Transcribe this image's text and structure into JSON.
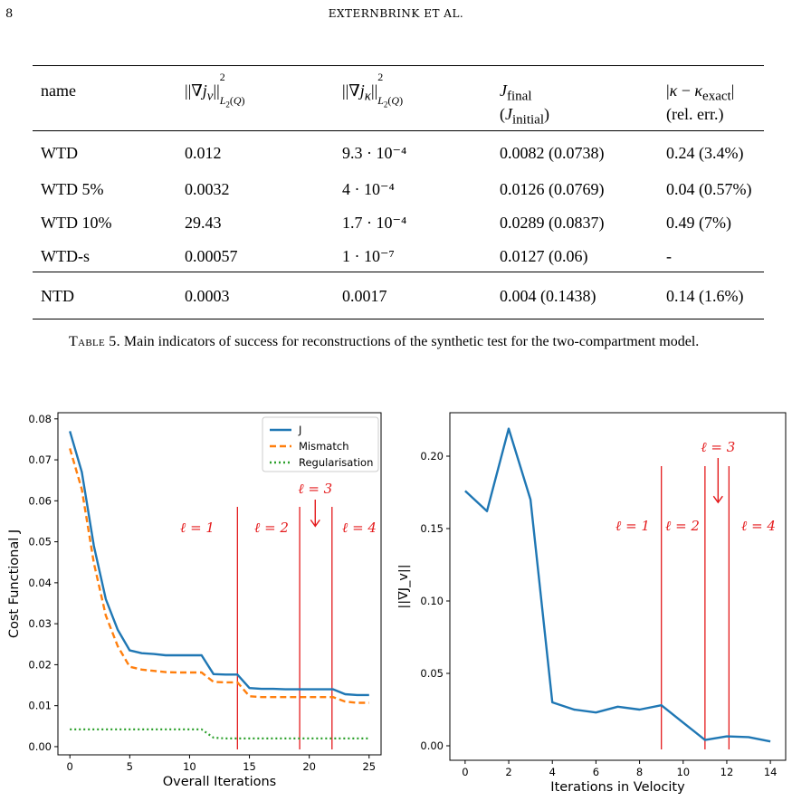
{
  "header": {
    "page_number": "8",
    "running_head": "EXTERNBRINK ET AL."
  },
  "table": {
    "columns": [
      "name",
      "||∇j_v||²_{L₂(Q)}",
      "||∇j_κ||²_{L₂(Q)}",
      "J_final (J_initial)",
      "|κ − κ_exact| (rel. err.)"
    ],
    "rows": [
      {
        "name": "WTD",
        "grad_jv": "0.012",
        "grad_jk": "9.3 · 10⁻⁴",
        "j": "0.0082 (0.0738)",
        "kappa": "0.24 (3.4%)"
      },
      {
        "name": "WTD 5%",
        "grad_jv": "0.0032",
        "grad_jk": "4 · 10⁻⁴",
        "j": "0.0126 (0.0769)",
        "kappa": "0.04 (0.57%)"
      },
      {
        "name": "WTD 10%",
        "grad_jv": "29.43",
        "grad_jk": "1.7 · 10⁻⁴",
        "j": "0.0289 (0.0837)",
        "kappa": "0.49 (7%)"
      },
      {
        "name": "WTD-s",
        "grad_jv": "0.00057",
        "grad_jk": "1 · 10⁻⁷",
        "j": "0.0127 (0.06)",
        "kappa": "-"
      },
      {
        "name": "NTD",
        "grad_jv": "0.0003",
        "grad_jk": "0.0017",
        "j": "0.004 (0.1438)",
        "kappa": "0.14 (1.6%)"
      }
    ]
  },
  "caption": {
    "label": "Table 5.",
    "text": "Main indicators of success for reconstructions of the synthetic test for the two-compartment model."
  },
  "chart_data": [
    {
      "type": "line",
      "xlabel": "Overall Iterations",
      "ylabel": "Cost Functional J",
      "xlim": [
        -1,
        26
      ],
      "ylim": [
        -0.002,
        0.0815
      ],
      "xticks": [
        0,
        5,
        10,
        15,
        20,
        25
      ],
      "yticks": [
        0.0,
        0.01,
        0.02,
        0.03,
        0.04,
        0.05,
        0.06,
        0.07,
        0.08
      ],
      "ytick_labels": [
        "0.00",
        "0.01",
        "0.02",
        "0.03",
        "0.04",
        "0.05",
        "0.06",
        "0.07",
        "0.08"
      ],
      "legend_position": "top-right",
      "x": [
        0,
        1,
        2,
        3,
        4,
        5,
        6,
        7,
        8,
        9,
        10,
        11,
        12,
        13,
        14,
        15,
        16,
        17,
        18,
        19,
        20,
        21,
        22,
        23,
        24,
        25
      ],
      "series": [
        {
          "name": "J",
          "color": "#1f77b4",
          "style": "solid",
          "values": [
            0.077,
            0.067,
            0.049,
            0.036,
            0.0285,
            0.0235,
            0.0228,
            0.0226,
            0.0223,
            0.0223,
            0.0223,
            0.0223,
            0.0177,
            0.0176,
            0.0176,
            0.0143,
            0.0141,
            0.0141,
            0.014,
            0.014,
            0.014,
            0.014,
            0.014,
            0.0128,
            0.0126,
            0.0126
          ]
        },
        {
          "name": "Mismatch",
          "color": "#ff7f0e",
          "style": "dashed",
          "values": [
            0.0728,
            0.0628,
            0.0448,
            0.032,
            0.0245,
            0.0195,
            0.0188,
            0.0185,
            0.0182,
            0.0181,
            0.0181,
            0.0181,
            0.0158,
            0.0157,
            0.0157,
            0.0123,
            0.0121,
            0.0121,
            0.0121,
            0.0121,
            0.0121,
            0.0121,
            0.0121,
            0.011,
            0.0107,
            0.0107
          ]
        },
        {
          "name": "Regularisation",
          "color": "#2ca02c",
          "style": "dotted",
          "values": [
            0.0042,
            0.0042,
            0.0042,
            0.0042,
            0.0042,
            0.0042,
            0.0042,
            0.0042,
            0.0042,
            0.0042,
            0.0042,
            0.0042,
            0.0022,
            0.002,
            0.002,
            0.002,
            0.002,
            0.002,
            0.002,
            0.002,
            0.002,
            0.002,
            0.002,
            0.002,
            0.002,
            0.002
          ]
        }
      ],
      "vlines": [
        {
          "x": 14,
          "label": "ℓ = 1"
        },
        {
          "x": 19.2,
          "label": "ℓ = 2"
        },
        {
          "x": 21.9,
          "label": "ℓ = 4"
        }
      ],
      "annotation": {
        "label": "ℓ = 3",
        "x": 20.5,
        "arrow_tip_y": 0.0538
      }
    },
    {
      "type": "line",
      "xlabel": "Iterations in Velocity",
      "ylabel": "||∇J_v||",
      "xlim": [
        -0.7,
        14.7
      ],
      "ylim": [
        -0.01,
        0.23
      ],
      "xticks": [
        0,
        2,
        4,
        6,
        8,
        10,
        12,
        14
      ],
      "yticks": [
        0.0,
        0.05,
        0.1,
        0.15,
        0.2
      ],
      "ytick_labels": [
        "0.00",
        "0.05",
        "0.10",
        "0.15",
        "0.20"
      ],
      "x": [
        0,
        1,
        2,
        3,
        4,
        5,
        6,
        7,
        8,
        9,
        10,
        11,
        12,
        13,
        14
      ],
      "series": [
        {
          "color": "#1f77b4",
          "style": "solid",
          "values": [
            0.176,
            0.162,
            0.219,
            0.17,
            0.03,
            0.025,
            0.023,
            0.027,
            0.025,
            0.028,
            0.016,
            0.004,
            0.0065,
            0.006,
            0.003
          ]
        }
      ],
      "vlines": [
        {
          "x": 9,
          "label": "ℓ = 1"
        },
        {
          "x": 11,
          "label": "ℓ = 2"
        },
        {
          "x": 12.1,
          "label": "ℓ = 4"
        }
      ],
      "annotation": {
        "label": "ℓ = 3",
        "x": 11.6,
        "arrow_tip_y": 0.168
      }
    }
  ]
}
